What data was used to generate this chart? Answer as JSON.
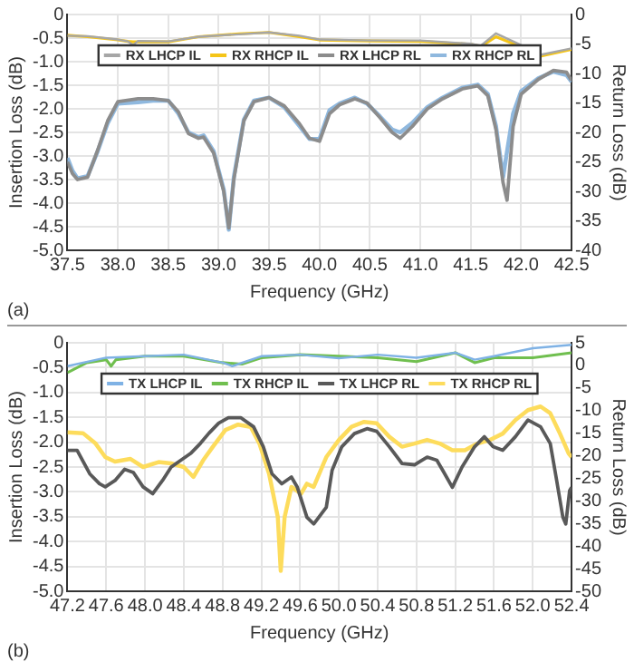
{
  "chart_data": [
    {
      "type": "line",
      "xlabel": "Frequency (GHz)",
      "ylabel": "Insertion Loss (dB)",
      "y2label": "Return Loss (dB)",
      "annotations": [
        "(a)"
      ],
      "legend": "top",
      "grid": true,
      "marker": "none",
      "line_style": "solid",
      "xlim": [
        37.5,
        42.5
      ],
      "xticks": [
        37.5,
        {
          "value": 38,
          "label": "38.0"
        },
        38.5,
        {
          "value": 39,
          "label": "39.0"
        },
        39.5,
        {
          "value": 40,
          "label": "40.0"
        },
        40.5,
        {
          "value": 41,
          "label": "41.0"
        },
        41.5,
        {
          "value": 42,
          "label": "42.0"
        },
        42.5
      ],
      "ylim": [
        -5,
        0
      ],
      "yticks": [
        0,
        -0.5,
        {
          "value": -1,
          "label": "-1.0"
        },
        -1.5,
        {
          "value": -2,
          "label": "-2.0"
        },
        -2.5,
        {
          "value": -3,
          "label": "-3.0"
        },
        -3.5,
        {
          "value": -4,
          "label": "-4.0"
        },
        -4.5,
        {
          "value": -5,
          "label": "-5.0"
        }
      ],
      "y2lim": [
        -40,
        0
      ],
      "y2ticks": [
        0,
        -5,
        -10,
        -15,
        -20,
        -25,
        -30,
        -35,
        -40
      ],
      "series": [
        {
          "name": "RX LHCP IL",
          "color": "#a6a6a6",
          "x": [
            37.5,
            37.7,
            38.0,
            38.1,
            38.15,
            38.2,
            38.5,
            38.8,
            39.2,
            39.5,
            39.8,
            40.0,
            40.5,
            41.0,
            41.5,
            41.6,
            41.75,
            41.9,
            42.2,
            42.5
          ],
          "values": [
            -0.45,
            -0.46,
            -0.53,
            -0.57,
            -0.65,
            -0.56,
            -0.57,
            -0.47,
            -0.42,
            -0.38,
            -0.45,
            -0.53,
            -0.55,
            -0.55,
            -0.62,
            -0.66,
            -0.4,
            -0.55,
            -0.85,
            -0.72
          ]
        },
        {
          "name": "RX RHCP IL",
          "color": "#f5c518",
          "x": [
            37.5,
            37.7,
            38.0,
            38.1,
            38.15,
            38.2,
            38.5,
            38.8,
            39.2,
            39.5,
            39.8,
            40.0,
            40.5,
            41.0,
            41.5,
            41.6,
            41.75,
            41.9,
            42.2,
            42.5
          ],
          "values": [
            -0.44,
            -0.47,
            -0.54,
            -0.57,
            -0.58,
            -0.58,
            -0.58,
            -0.47,
            -0.41,
            -0.38,
            -0.47,
            -0.54,
            -0.56,
            -0.57,
            -0.63,
            -0.68,
            -0.47,
            -0.6,
            -0.88,
            -0.74
          ]
        },
        {
          "name": "RX LHCP RL",
          "color": "#8c8c8c",
          "axis": "y2",
          "x": [
            37.5,
            37.55,
            37.6,
            37.7,
            37.8,
            37.9,
            38.0,
            38.2,
            38.35,
            38.5,
            38.6,
            38.7,
            38.8,
            38.85,
            38.95,
            39.05,
            39.1,
            39.15,
            39.25,
            39.35,
            39.5,
            39.65,
            39.8,
            39.9,
            40.0,
            40.1,
            40.2,
            40.35,
            40.47,
            40.6,
            40.72,
            40.8,
            40.92,
            41.07,
            41.22,
            41.42,
            41.57,
            41.67,
            41.75,
            41.82,
            41.86,
            41.92,
            42.0,
            42.17,
            42.32,
            42.45,
            42.5
          ],
          "values": [
            -25,
            -27,
            -28,
            -27.6,
            -23,
            -18,
            -14.8,
            -14.3,
            -14.3,
            -14.6,
            -16.5,
            -20.2,
            -21,
            -20.8,
            -23.5,
            -30,
            -36.2,
            -28,
            -18,
            -14.8,
            -14.1,
            -15.5,
            -18.5,
            -21,
            -21.5,
            -16.8,
            -15.3,
            -14.3,
            -15,
            -17.5,
            -20,
            -21,
            -19,
            -16,
            -14.3,
            -12.6,
            -12.1,
            -13.8,
            -19.5,
            -28.5,
            -31.5,
            -19,
            -13.5,
            -11,
            -9.5,
            -9.8,
            -11.2
          ]
        },
        {
          "name": "RX RHCP RL",
          "color": "#8fb8de",
          "axis": "y2",
          "x": [
            37.5,
            37.55,
            37.6,
            37.7,
            37.8,
            37.9,
            38.0,
            38.2,
            38.35,
            38.5,
            38.6,
            38.7,
            38.8,
            38.85,
            38.95,
            39.05,
            39.1,
            39.15,
            39.25,
            39.35,
            39.5,
            39.65,
            39.8,
            39.9,
            40.0,
            40.1,
            40.2,
            40.35,
            40.47,
            40.6,
            40.72,
            40.8,
            40.92,
            41.07,
            41.22,
            41.42,
            41.57,
            41.67,
            41.75,
            41.82,
            41.86,
            41.92,
            42.0,
            42.17,
            42.32,
            42.45,
            42.5
          ],
          "values": [
            -24.3,
            -26.5,
            -27.8,
            -27.4,
            -23.2,
            -18.4,
            -15.1,
            -14.9,
            -14.6,
            -14.6,
            -16.8,
            -20,
            -20.8,
            -20.5,
            -23.2,
            -29.7,
            -36.5,
            -27.6,
            -17.8,
            -14.6,
            -14.1,
            -15.7,
            -18.9,
            -21.1,
            -21.1,
            -16.2,
            -15.1,
            -14.1,
            -15.1,
            -17.3,
            -19.5,
            -20,
            -18.4,
            -15.7,
            -14.1,
            -12.4,
            -11.9,
            -13.5,
            -18.9,
            -27.6,
            -23.2,
            -16.8,
            -13,
            -10.8,
            -9.7,
            -10.3,
            -11.4
          ]
        }
      ]
    },
    {
      "type": "line",
      "xlabel": "Frequency (GHz)",
      "ylabel": "Insertion Loss (dB)",
      "y2label": "Return Loss (dB)",
      "annotations": [
        "(b)"
      ],
      "legend": "top",
      "grid": true,
      "marker": "none",
      "line_style": "solid",
      "xlim": [
        47.2,
        52.4
      ],
      "xticks": [
        47.2,
        47.6,
        {
          "value": 48,
          "label": "48.0"
        },
        48.4,
        48.8,
        49.2,
        49.6,
        {
          "value": 50,
          "label": "50.0"
        },
        50.4,
        50.8,
        51.2,
        51.6,
        {
          "value": 52,
          "label": "52.0"
        },
        52.4
      ],
      "ylim": [
        -5,
        0
      ],
      "yticks": [
        0,
        -0.5,
        {
          "value": -1,
          "label": "-1.0"
        },
        -1.5,
        {
          "value": -2,
          "label": "-2.0"
        },
        -2.5,
        {
          "value": -3,
          "label": "-3.0"
        },
        -3.5,
        {
          "value": -4,
          "label": "-4.0"
        },
        -4.5,
        {
          "value": -5,
          "label": "-5.0"
        }
      ],
      "y2lim": [
        -50,
        5
      ],
      "y2ticks": [
        5,
        0,
        -5,
        -10,
        -15,
        -20,
        -25,
        -30,
        -35,
        -40,
        -45,
        -50
      ],
      "series": [
        {
          "name": "TX LHCP IL",
          "color": "#7fb2e5",
          "x": [
            47.2,
            47.6,
            48.0,
            48.4,
            48.8,
            48.9,
            49.2,
            49.6,
            50.0,
            50.4,
            50.8,
            51.2,
            51.4,
            51.6,
            52.0,
            52.4
          ],
          "values": [
            -0.47,
            -0.3,
            -0.27,
            -0.24,
            -0.4,
            -0.47,
            -0.27,
            -0.24,
            -0.31,
            -0.24,
            -0.3,
            -0.2,
            -0.34,
            -0.27,
            -0.11,
            -0.04
          ]
        },
        {
          "name": "TX RHCP IL",
          "color": "#70bf4f",
          "x": [
            47.2,
            47.4,
            47.6,
            47.65,
            47.7,
            48.0,
            48.4,
            48.8,
            49.0,
            49.2,
            49.6,
            50.0,
            50.4,
            50.8,
            51.2,
            51.4,
            51.6,
            52.0,
            52.4
          ],
          "values": [
            -0.6,
            -0.4,
            -0.34,
            -0.47,
            -0.34,
            -0.27,
            -0.27,
            -0.4,
            -0.43,
            -0.3,
            -0.24,
            -0.27,
            -0.3,
            -0.38,
            -0.2,
            -0.4,
            -0.3,
            -0.3,
            -0.2
          ]
        },
        {
          "name": "TX LHCP RL",
          "color": "#595959",
          "axis": "y2",
          "x": [
            47.2,
            47.3,
            47.43,
            47.53,
            47.59,
            47.69,
            47.79,
            47.88,
            47.98,
            48.08,
            48.18,
            48.27,
            48.37,
            48.47,
            48.57,
            48.66,
            48.76,
            48.86,
            48.99,
            49.12,
            49.22,
            49.31,
            49.41,
            49.51,
            49.57,
            49.67,
            49.74,
            49.87,
            49.93,
            50.03,
            50.16,
            50.29,
            50.39,
            50.52,
            50.65,
            50.78,
            50.91,
            51.01,
            51.07,
            51.17,
            51.27,
            51.4,
            51.5,
            51.59,
            51.69,
            51.82,
            51.95,
            52.08,
            52.18,
            52.24,
            52.31,
            52.34,
            52.38,
            52.4
          ],
          "values": [
            -18.8,
            -18.8,
            -24,
            -26.2,
            -26.9,
            -25.5,
            -23,
            -23.7,
            -26.9,
            -28.4,
            -25.5,
            -22.5,
            -21,
            -19.5,
            -17.3,
            -15,
            -12.8,
            -11.6,
            -11.6,
            -13.6,
            -18,
            -24,
            -26.2,
            -24.7,
            -26.9,
            -33.6,
            -35.1,
            -31.4,
            -23.2,
            -18,
            -15.1,
            -14,
            -14.6,
            -18,
            -21.7,
            -22,
            -20.3,
            -21,
            -23.2,
            -27,
            -22.5,
            -18,
            -15.8,
            -18,
            -18.8,
            -15.8,
            -12.1,
            -13.6,
            -17.3,
            -24.7,
            -33.6,
            -35.1,
            -27.7,
            -27
          ]
        },
        {
          "name": "TX RHCP RL",
          "color": "#fddc5c",
          "axis": "y2",
          "x": [
            47.2,
            47.36,
            47.49,
            47.59,
            47.69,
            47.85,
            47.98,
            48.14,
            48.27,
            48.4,
            48.5,
            48.6,
            48.7,
            48.83,
            48.96,
            49.09,
            49.18,
            49.28,
            49.37,
            49.4,
            49.44,
            49.51,
            49.61,
            49.67,
            49.74,
            49.87,
            50.0,
            50.13,
            50.26,
            50.39,
            50.52,
            50.65,
            50.78,
            50.91,
            51.04,
            51.17,
            51.3,
            51.43,
            51.56,
            51.69,
            51.82,
            51.95,
            52.08,
            52.18,
            52.28,
            52.37,
            52.4
          ],
          "values": [
            -14.8,
            -15,
            -17.3,
            -20.3,
            -21.3,
            -20.7,
            -22.5,
            -21.4,
            -21.7,
            -22.5,
            -24.7,
            -21,
            -18,
            -14.3,
            -13.1,
            -13.6,
            -17.3,
            -24,
            -33.6,
            -45.5,
            -33.6,
            -26.9,
            -28.4,
            -26.2,
            -26.9,
            -20.3,
            -16.5,
            -13.6,
            -12.5,
            -12.8,
            -15.8,
            -18,
            -17.3,
            -16.5,
            -17.3,
            -18.8,
            -18.8,
            -17.3,
            -16.5,
            -15.1,
            -12.1,
            -9.9,
            -9.1,
            -10.6,
            -15.1,
            -19.5,
            -20.3
          ]
        }
      ]
    }
  ]
}
